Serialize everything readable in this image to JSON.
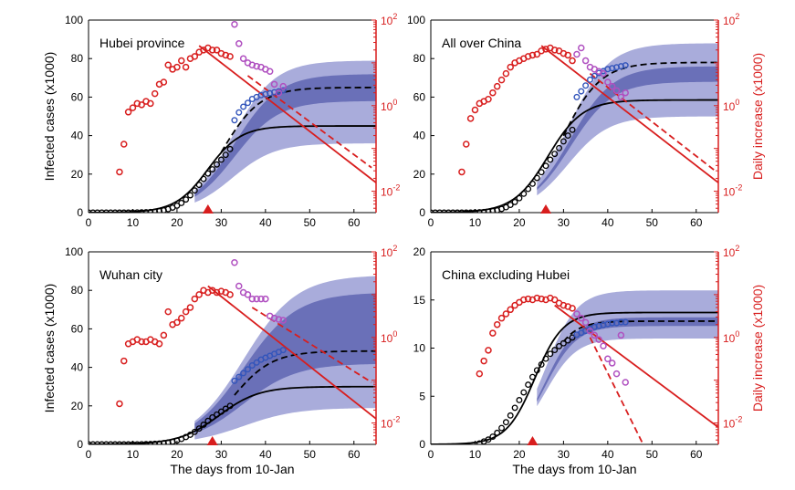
{
  "colors": {
    "black_series": "#000000",
    "blue_points": "#3355bb",
    "red_points": "#d81e1e",
    "magenta_points": "#b050c0",
    "band_light": "#a9acdb",
    "band_dark": "#6a70b8",
    "right_axis": "#d81e1e"
  },
  "axis_labels": {
    "x": "The days from 10-Jan",
    "y_left": "Infected cases (x1000)",
    "y_right": "Daily increase (x1000)"
  },
  "chart_data": [
    {
      "type": "line",
      "panel": "top-left",
      "title": "Hubei province",
      "xlim": [
        0,
        65
      ],
      "ylim": [
        0,
        100
      ],
      "xticks": [
        0,
        10,
        20,
        30,
        40,
        50,
        60
      ],
      "yticks": [
        0,
        20,
        40,
        60,
        80,
        100
      ],
      "right_ylim_log": [
        -2.5,
        2
      ],
      "right_ticks": [
        -2,
        0,
        2
      ],
      "show_xlabel": false,
      "show_ylabel": true,
      "show_right_label": false,
      "marker_day": 27,
      "black_x": [
        0,
        1,
        2,
        3,
        4,
        5,
        6,
        7,
        8,
        9,
        10,
        11,
        12,
        13,
        14,
        15,
        16,
        17,
        18,
        19,
        20,
        21,
        22,
        23,
        24,
        25,
        26,
        27,
        28,
        29,
        30,
        31,
        32
      ],
      "black_y": [
        0,
        0,
        0,
        0,
        0,
        0,
        0,
        0,
        0,
        0,
        0.05,
        0.1,
        0.15,
        0.2,
        0.3,
        0.5,
        0.8,
        1.2,
        1.8,
        2.6,
        3.6,
        5,
        6.8,
        9,
        11.5,
        14.4,
        17.5,
        20.3,
        22.5,
        25,
        27.5,
        30,
        33
      ],
      "blue_x": [
        33,
        34,
        35,
        36,
        37,
        38,
        39,
        40,
        41,
        42,
        43,
        44
      ],
      "blue_y": [
        48,
        52,
        55,
        57,
        59,
        60,
        61,
        61.5,
        62,
        62.5,
        63,
        63.5
      ],
      "red_x": [
        7,
        8,
        9,
        10,
        11,
        12,
        13,
        14,
        15,
        16,
        17,
        18,
        19,
        20,
        21,
        22,
        23,
        24,
        25,
        26,
        27,
        28,
        29,
        30,
        31,
        32
      ],
      "red_log": [
        -1.55,
        -0.9,
        -0.15,
        -0.05,
        0.05,
        0.02,
        0.1,
        0.05,
        0.28,
        0.5,
        0.55,
        0.95,
        0.85,
        0.9,
        1.05,
        0.9,
        1.1,
        1.15,
        1.25,
        1.3,
        1.35,
        1.3,
        1.3,
        1.22,
        1.18,
        1.15
      ],
      "magenta_x": [
        33,
        34,
        35,
        36,
        37,
        38,
        39,
        40,
        41,
        42,
        43,
        44
      ],
      "magenta_log": [
        1.9,
        1.45,
        1.1,
        1.0,
        0.95,
        0.92,
        0.9,
        0.85,
        0.8,
        0.5,
        0.3,
        0.45
      ],
      "fit_solid": {
        "k": 45,
        "t": 27,
        "s": 3.7
      },
      "fit_dashed": {
        "k": 65,
        "t": 30.3,
        "s": 4.3,
        "start": 30
      },
      "band_light": {
        "k_low": 36,
        "k_high": 79,
        "t": 32.5,
        "s": 4.8
      },
      "band_dark": {
        "k_low": 58,
        "k_high": 72,
        "t": 33,
        "s": 5
      },
      "red_line": {
        "x": [
          25,
          65
        ],
        "y": [
          1.4,
          -1.8
        ]
      },
      "red_dashed": {
        "x": [
          36,
          64
        ],
        "y": [
          0.7,
          -1.45
        ]
      }
    },
    {
      "type": "line",
      "panel": "top-right",
      "title": "All over China",
      "xlim": [
        0,
        65
      ],
      "ylim": [
        0,
        100
      ],
      "xticks": [
        0,
        10,
        20,
        30,
        40,
        50,
        60
      ],
      "yticks": [
        0,
        20,
        40,
        60,
        80,
        100
      ],
      "right_ylim_log": [
        -2.5,
        2
      ],
      "right_ticks": [
        -2,
        0,
        2
      ],
      "show_xlabel": false,
      "show_ylabel": false,
      "show_right_label": true,
      "marker_day": 26,
      "black_x": [
        0,
        1,
        2,
        3,
        4,
        5,
        6,
        7,
        8,
        9,
        10,
        11,
        12,
        13,
        14,
        15,
        16,
        17,
        18,
        19,
        20,
        21,
        22,
        23,
        24,
        25,
        26,
        27,
        28,
        29,
        30,
        31,
        32
      ],
      "black_y": [
        0,
        0,
        0,
        0,
        0,
        0,
        0,
        0,
        0,
        0,
        0.1,
        0.2,
        0.3,
        0.5,
        0.8,
        1.2,
        1.9,
        2.8,
        4,
        5.5,
        7.5,
        9.8,
        12.3,
        15,
        18,
        21,
        24.3,
        27.5,
        30.5,
        33.5,
        37,
        40,
        43
      ],
      "blue_x": [
        33,
        34,
        35,
        36,
        37,
        38,
        39,
        40,
        41,
        42,
        43,
        44
      ],
      "blue_y": [
        60,
        63,
        66,
        69,
        71,
        72.5,
        73.5,
        74.5,
        75,
        75.5,
        76,
        76.5
      ],
      "red_x": [
        7,
        8,
        9,
        10,
        11,
        12,
        13,
        14,
        15,
        16,
        17,
        18,
        19,
        20,
        21,
        22,
        23,
        24,
        25,
        26,
        27,
        28,
        29,
        30,
        31,
        32
      ],
      "red_log": [
        -1.55,
        -0.9,
        -0.3,
        -0.1,
        0.05,
        0.1,
        0.15,
        0.3,
        0.45,
        0.6,
        0.75,
        0.9,
        1.0,
        1.05,
        1.1,
        1.15,
        1.18,
        1.2,
        1.28,
        1.32,
        1.35,
        1.3,
        1.28,
        1.22,
        1.18,
        1.05
      ],
      "magenta_x": [
        33,
        34,
        35,
        36,
        37,
        38,
        39,
        40,
        41,
        42,
        43,
        44
      ],
      "magenta_log": [
        1.2,
        1.35,
        1.05,
        0.9,
        0.85,
        0.8,
        0.75,
        0.55,
        0.45,
        0.35,
        0.2,
        0.3
      ],
      "fit_solid": {
        "k": 58.5,
        "t": 26.5,
        "s": 3.9
      },
      "fit_dashed": {
        "k": 78,
        "t": 29.8,
        "s": 4.3,
        "start": 30
      },
      "band_light": {
        "k_low": 50,
        "k_high": 88,
        "t": 31,
        "s": 4.6
      },
      "band_dark": {
        "k_low": 68,
        "k_high": 76,
        "t": 31.5,
        "s": 4.8
      },
      "red_line": {
        "x": [
          25,
          65
        ],
        "y": [
          1.4,
          -1.8
        ]
      },
      "red_dashed": {
        "x": [
          36,
          64
        ],
        "y": [
          0.75,
          -1.5
        ]
      }
    },
    {
      "type": "line",
      "panel": "bottom-left",
      "title": "Wuhan city",
      "xlim": [
        0,
        65
      ],
      "ylim": [
        0,
        100
      ],
      "xticks": [
        0,
        10,
        20,
        30,
        40,
        50,
        60
      ],
      "yticks": [
        0,
        20,
        40,
        60,
        80,
        100
      ],
      "right_ylim_log": [
        -2.5,
        2
      ],
      "right_ticks": [
        -2,
        0,
        2
      ],
      "show_xlabel": true,
      "show_ylabel": true,
      "show_right_label": false,
      "marker_day": 28,
      "black_x": [
        0,
        1,
        2,
        3,
        4,
        5,
        6,
        7,
        8,
        9,
        10,
        11,
        12,
        13,
        14,
        15,
        16,
        17,
        18,
        19,
        20,
        21,
        22,
        23,
        24,
        25,
        26,
        27,
        28,
        29,
        30,
        31,
        32
      ],
      "black_y": [
        0,
        0,
        0,
        0,
        0,
        0,
        0,
        0,
        0,
        0,
        0,
        0.05,
        0.1,
        0.15,
        0.2,
        0.3,
        0.45,
        0.7,
        1,
        1.4,
        2,
        2.8,
        3.8,
        5,
        6.5,
        8.2,
        10.2,
        12.2,
        14,
        15.5,
        17,
        18.5,
        20
      ],
      "blue_x": [
        33,
        34,
        35,
        36,
        37,
        38,
        39,
        40,
        41,
        42,
        43,
        44
      ],
      "blue_y": [
        33,
        35,
        37,
        39,
        41,
        42.5,
        44,
        45,
        46,
        47,
        48,
        49
      ],
      "red_x": [
        7,
        8,
        9,
        10,
        11,
        12,
        13,
        14,
        15,
        16,
        17,
        18,
        19,
        20,
        21,
        22,
        23,
        24,
        25,
        26,
        27,
        28,
        29,
        30,
        31,
        32
      ],
      "red_log": [
        -1.55,
        -0.55,
        -0.15,
        -0.1,
        -0.05,
        -0.1,
        -0.1,
        -0.05,
        -0.1,
        -0.15,
        0.05,
        0.6,
        0.3,
        0.35,
        0.45,
        0.6,
        0.7,
        0.9,
        1.0,
        1.1,
        1.05,
        1.1,
        1.05,
        1.08,
        1.05,
        1.0
      ],
      "magenta_x": [
        33,
        34,
        35,
        36,
        37,
        38,
        39,
        40,
        41,
        42,
        43,
        44
      ],
      "magenta_log": [
        1.75,
        1.2,
        1.05,
        1.0,
        0.9,
        0.9,
        0.9,
        0.9,
        0.5,
        0.45,
        0.42,
        0.4
      ],
      "fit_solid": {
        "k": 30,
        "t": 29.5,
        "s": 4.5
      },
      "fit_dashed": {
        "k": 48.5,
        "t": 32.5,
        "s": 4.5,
        "start": 33
      },
      "band_light": {
        "k_low": 19,
        "k_high": 88,
        "t": 35,
        "s": 6
      },
      "band_dark": {
        "k_low": 42,
        "k_high": 79,
        "t": 35,
        "s": 6
      },
      "red_line": {
        "x": [
          27,
          65
        ],
        "y": [
          1.2,
          -1.9
        ]
      },
      "red_dashed": {
        "x": [
          37,
          64
        ],
        "y": [
          0.7,
          -1.05
        ]
      }
    },
    {
      "type": "line",
      "panel": "bottom-right",
      "title": "China excluding Hubei",
      "xlim": [
        0,
        65
      ],
      "ylim": [
        0,
        20
      ],
      "xticks": [
        0,
        10,
        20,
        30,
        40,
        50,
        60
      ],
      "yticks": [
        0,
        5,
        10,
        15,
        20
      ],
      "right_ylim_log": [
        -2.5,
        2
      ],
      "right_ticks": [
        -2,
        0,
        2
      ],
      "show_xlabel": true,
      "show_ylabel": false,
      "show_right_label": true,
      "marker_day": 23,
      "black_x": [
        11,
        12,
        13,
        14,
        15,
        16,
        17,
        18,
        19,
        20,
        21,
        22,
        23,
        24,
        25,
        26,
        27,
        28,
        29,
        30,
        31,
        32
      ],
      "black_y": [
        0.1,
        0.3,
        0.5,
        0.8,
        1.2,
        1.7,
        2.3,
        3,
        3.8,
        4.6,
        5.4,
        6.2,
        7,
        7.7,
        8.3,
        8.9,
        9.4,
        9.8,
        10.2,
        10.5,
        10.8,
        11.1
      ],
      "blue_x": [
        33,
        34,
        35,
        36,
        37,
        38,
        39,
        40,
        41,
        42,
        43,
        44
      ],
      "blue_y": [
        11.4,
        11.6,
        11.8,
        12,
        12.2,
        12.3,
        12.4,
        12.5,
        12.6,
        12.6,
        12.7,
        12.7
      ],
      "red_x": [
        11,
        12,
        13,
        14,
        15,
        16,
        17,
        18,
        19,
        20,
        21,
        22,
        23,
        24,
        25,
        26,
        27,
        28,
        29,
        30,
        31,
        32
      ],
      "red_log": [
        -0.85,
        -0.55,
        -0.3,
        0.1,
        0.3,
        0.45,
        0.55,
        0.65,
        0.75,
        0.82,
        0.88,
        0.9,
        0.88,
        0.92,
        0.9,
        0.88,
        0.92,
        0.88,
        0.8,
        0.75,
        0.72,
        0.68
      ],
      "magenta_x": [
        33,
        34,
        35,
        36,
        37,
        38,
        39,
        40,
        41,
        42,
        43,
        44
      ],
      "magenta_log": [
        0.55,
        0.45,
        0.35,
        0.15,
        0.05,
        -0.05,
        -0.2,
        -0.5,
        -0.6,
        -0.85,
        0.05,
        -1.05
      ],
      "fit_solid": {
        "k": 13.7,
        "t": 23.5,
        "s": 3.2
      },
      "fit_dashed": {
        "k": 12.8,
        "t": 25,
        "s": 3.1,
        "start": 30
      },
      "band_light": {
        "k_low": 11,
        "k_high": 16,
        "t": 26,
        "s": 3.5
      },
      "band_dark": {
        "k_low": 12.3,
        "k_high": 13.2,
        "t": 26,
        "s": 3.5
      },
      "red_line": {
        "x": [
          28,
          65
        ],
        "y": [
          0.75,
          -2.1
        ]
      },
      "red_dashed": {
        "x": [
          36,
          48
        ],
        "y": [
          0.0,
          -2.5
        ]
      }
    }
  ]
}
